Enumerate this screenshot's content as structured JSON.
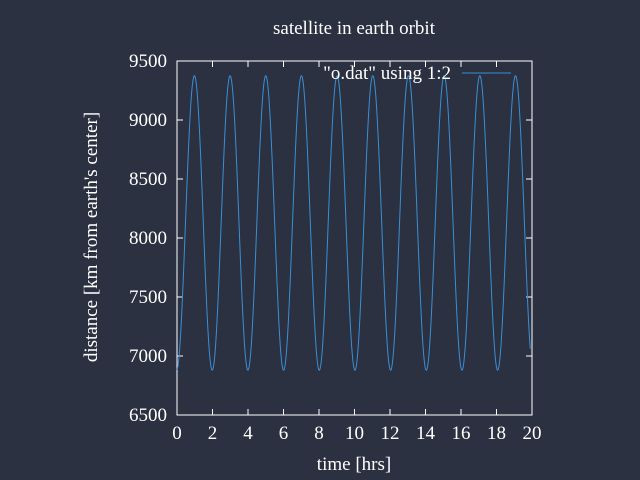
{
  "chart_data": {
    "type": "line",
    "title": "satellite in earth orbit",
    "xlabel": "time [hrs]",
    "ylabel": "distance [km from earth's center]",
    "xlim": [
      0,
      20
    ],
    "ylim": [
      6500,
      9500
    ],
    "xticks": [
      "0",
      "2",
      "4",
      "6",
      "8",
      "10",
      "12",
      "14",
      "16",
      "18",
      "20"
    ],
    "yticks": [
      "6500",
      "7000",
      "7500",
      "8000",
      "8500",
      "9000",
      "9500"
    ],
    "legend_position": "top-right",
    "grid": false,
    "series": [
      {
        "name": "\"o.dat\" using 1:2",
        "color": "#3a8fd6",
        "model": {
          "min_distance_km": 6880,
          "max_distance_km": 9375,
          "period_hrs": 2.01,
          "first_max_hrs": 0.98,
          "x_start_hrs": 0,
          "x_end_hrs": 19.9
        }
      }
    ]
  }
}
